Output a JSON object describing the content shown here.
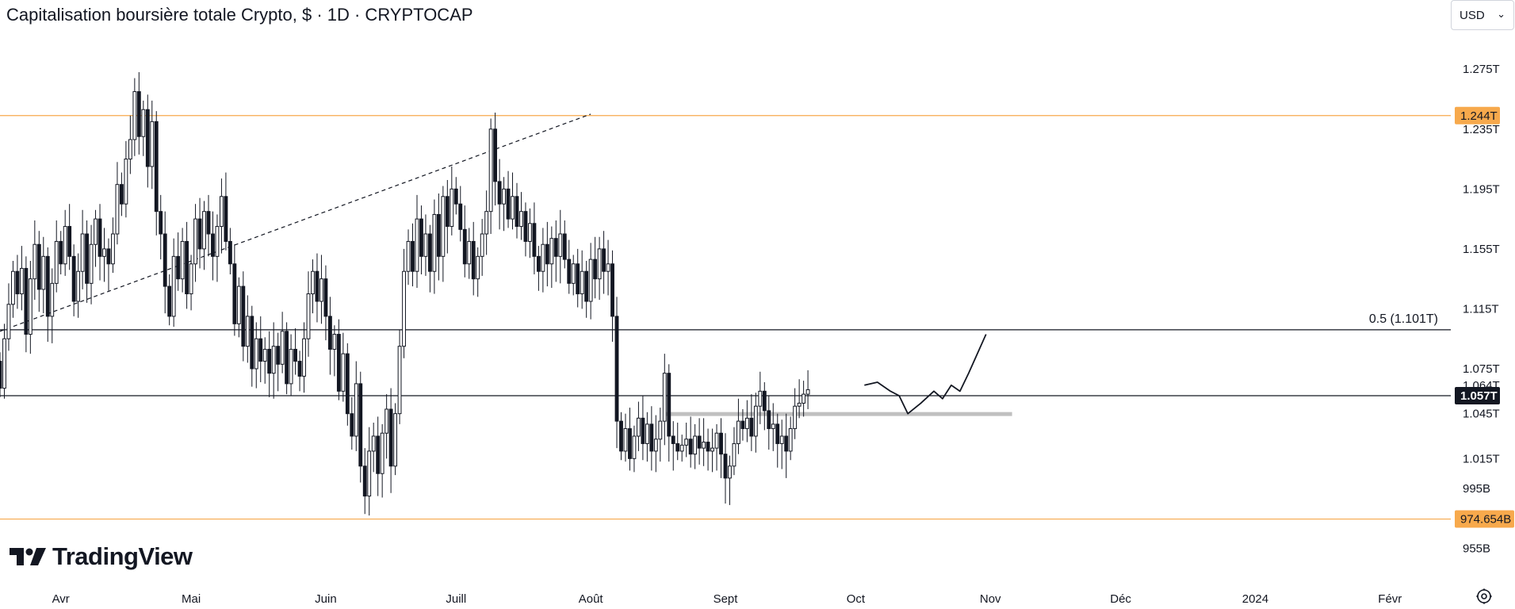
{
  "header": {
    "title": "Capitalisation boursière totale Crypto, $ · 1D · CRYPTOCAP",
    "currency_label": "USD",
    "currency_icon": "chevron-down-icon"
  },
  "branding": {
    "logo_text": "TradingView",
    "logo_icon": "tradingview-logo-icon"
  },
  "footer": {
    "settings_icon": "gear-icon"
  },
  "colors": {
    "up": "#ffffff",
    "down": "#131722",
    "outline": "#131722",
    "level_orange": "#f7a94c",
    "line_black": "#131722",
    "support_zone": "#c0c0c0"
  },
  "chart_data": {
    "type": "candlestick",
    "title": "Capitalisation boursière totale Crypto, $ · 1D · CRYPTOCAP",
    "price_unit": "USD",
    "ylim": [
      940000000000,
      1300000000000
    ],
    "x_range": [
      "2023-03-18",
      "2024-02-15"
    ],
    "y_ticks": [
      "1.275T",
      "1.235T",
      "1.195T",
      "1.155T",
      "1.115T",
      "1.075T",
      "1.064T",
      "1.045T",
      "1.015T",
      "995B",
      "955B"
    ],
    "y_tick_values": [
      1275,
      1235,
      1195,
      1155,
      1115,
      1075,
      1064,
      1045,
      1015,
      995,
      955
    ],
    "x_ticks": [
      "Avr",
      "Mai",
      "Juin",
      "Juill",
      "Août",
      "Sept",
      "Oct",
      "Nov",
      "Déc",
      "2024",
      "Févr"
    ],
    "x_tick_dates": [
      "2023-04-01",
      "2023-05-01",
      "2023-06-01",
      "2023-07-01",
      "2023-08-01",
      "2023-09-01",
      "2023-10-01",
      "2023-11-01",
      "2023-12-01",
      "2024-01-01",
      "2024-02-01"
    ],
    "price_labels": [
      {
        "text": "1.244T",
        "value": 1244,
        "style": "orange"
      },
      {
        "text": "1.057T",
        "value": 1057,
        "style": "dark"
      },
      {
        "text": "974.654B",
        "value": 974.654,
        "style": "orange"
      }
    ],
    "horizontal_lines": [
      {
        "value": 1244,
        "color": "orange",
        "to_axis": true
      },
      {
        "value": 1101,
        "color": "black",
        "to_axis": true,
        "label": "0.5 (1.101T)"
      },
      {
        "value": 1057,
        "color": "black",
        "to_axis": true
      },
      {
        "value": 974.654,
        "color": "orange",
        "to_axis": true
      }
    ],
    "support_zone": {
      "value": 1045,
      "from": "2023-08-18",
      "to": "2023-11-06"
    },
    "trendline": {
      "from": [
        "2023-03-18",
        1100
      ],
      "to": [
        "2023-08-01",
        1245
      ],
      "style": "dashed"
    },
    "projection_path": [
      [
        "2023-10-03",
        1064
      ],
      [
        "2023-10-06",
        1066
      ],
      [
        "2023-10-09",
        1060
      ],
      [
        "2023-10-11",
        1057
      ],
      [
        "2023-10-13",
        1045
      ],
      [
        "2023-10-16",
        1052
      ],
      [
        "2023-10-19",
        1060
      ],
      [
        "2023-10-21",
        1055
      ],
      [
        "2023-10-23",
        1064
      ],
      [
        "2023-10-25",
        1060
      ],
      [
        "2023-10-27",
        1072
      ],
      [
        "2023-10-29",
        1085
      ],
      [
        "2023-10-31",
        1098
      ]
    ],
    "anchor": {
      "date": "2023-03-18",
      "open": 1080
    },
    "closes": [
      1062,
      1095,
      1118,
      1140,
      1125,
      1142,
      1098,
      1135,
      1158,
      1128,
      1150,
      1110,
      1132,
      1160,
      1145,
      1170,
      1150,
      1120,
      1140,
      1165,
      1132,
      1158,
      1175,
      1150,
      1155,
      1145,
      1165,
      1198,
      1185,
      1215,
      1228,
      1260,
      1230,
      1248,
      1210,
      1240,
      1180,
      1165,
      1130,
      1110,
      1150,
      1135,
      1160,
      1125,
      1145,
      1175,
      1155,
      1180,
      1165,
      1150,
      1170,
      1190,
      1160,
      1145,
      1105,
      1130,
      1090,
      1110,
      1075,
      1095,
      1080,
      1088,
      1072,
      1090,
      1078,
      1100,
      1065,
      1088,
      1080,
      1070,
      1095,
      1125,
      1140,
      1120,
      1135,
      1110,
      1088,
      1098,
      1060,
      1085,
      1045,
      1030,
      1065,
      1010,
      990,
      1020,
      1030,
      1005,
      1032,
      1048,
      1010,
      1045,
      1090,
      1140,
      1160,
      1140,
      1175,
      1150,
      1165,
      1140,
      1178,
      1150,
      1190,
      1170,
      1195,
      1185,
      1168,
      1145,
      1160,
      1135,
      1150,
      1165,
      1180,
      1235,
      1200,
      1185,
      1195,
      1175,
      1190,
      1170,
      1180,
      1160,
      1172,
      1150,
      1140,
      1158,
      1145,
      1162,
      1150,
      1165,
      1148,
      1132,
      1145,
      1125,
      1140,
      1120,
      1148,
      1135,
      1155,
      1140,
      1145,
      1110,
      1040,
      1020,
      1035,
      1015,
      1030,
      1042,
      1025,
      1038,
      1020,
      1028,
      1040,
      1072,
      1030,
      1025,
      1020,
      1024,
      1028,
      1018,
      1030,
      1022,
      1026,
      1020,
      1022,
      1032,
      1018,
      1002,
      1010,
      1025,
      1040,
      1035,
      1042,
      1030,
      1050,
      1060,
      1047,
      1035,
      1038,
      1025,
      1030,
      1020,
      1035,
      1050,
      1052,
      1058,
      1061
    ]
  }
}
